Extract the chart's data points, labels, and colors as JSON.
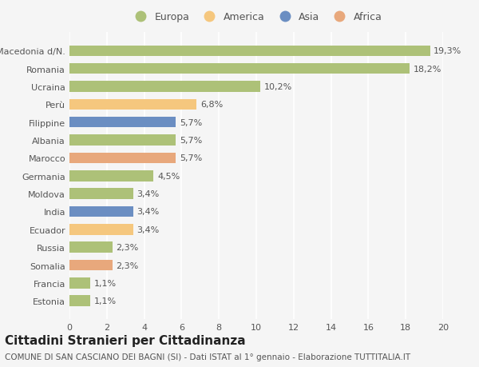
{
  "categories": [
    "Estonia",
    "Francia",
    "Somalia",
    "Russia",
    "Ecuador",
    "India",
    "Moldova",
    "Germania",
    "Marocco",
    "Albania",
    "Filippine",
    "Perù",
    "Ucraina",
    "Romania",
    "Macedonia d/N."
  ],
  "values": [
    1.1,
    1.1,
    2.3,
    2.3,
    3.4,
    3.4,
    3.4,
    4.5,
    5.7,
    5.7,
    5.7,
    6.8,
    10.2,
    18.2,
    19.3
  ],
  "labels": [
    "1,1%",
    "1,1%",
    "2,3%",
    "2,3%",
    "3,4%",
    "3,4%",
    "3,4%",
    "4,5%",
    "5,7%",
    "5,7%",
    "5,7%",
    "6,8%",
    "10,2%",
    "18,2%",
    "19,3%"
  ],
  "colors": [
    "#adc178",
    "#adc178",
    "#e8a87c",
    "#adc178",
    "#f5c77e",
    "#6b8ec2",
    "#adc178",
    "#adc178",
    "#e8a87c",
    "#adc178",
    "#6b8ec2",
    "#f5c77e",
    "#adc178",
    "#adc178",
    "#adc178"
  ],
  "legend_labels": [
    "Europa",
    "America",
    "Asia",
    "Africa"
  ],
  "legend_colors": [
    "#adc178",
    "#f5c77e",
    "#6b8ec2",
    "#e8a87c"
  ],
  "title": "Cittadini Stranieri per Cittadinanza",
  "subtitle": "COMUNE DI SAN CASCIANO DEI BAGNI (SI) - Dati ISTAT al 1° gennaio - Elaborazione TUTTITALIA.IT",
  "xlim": [
    0,
    20
  ],
  "xticks": [
    0,
    2,
    4,
    6,
    8,
    10,
    12,
    14,
    16,
    18,
    20
  ],
  "background_color": "#f5f5f5",
  "bar_height": 0.6,
  "grid_color": "#ffffff",
  "title_fontsize": 11,
  "subtitle_fontsize": 7.5,
  "label_fontsize": 8,
  "tick_fontsize": 8,
  "legend_fontsize": 9
}
